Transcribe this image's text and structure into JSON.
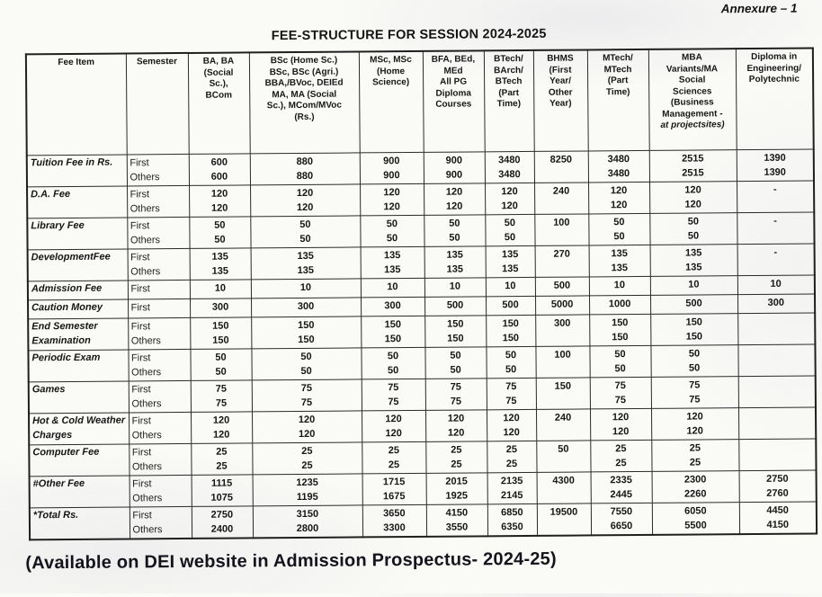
{
  "page": {
    "annexure": "Annexure – 1",
    "title": "FEE-STRUCTURE FOR SESSION 2024-2025",
    "footnote": "(Available on DEI website in Admission Prospectus- 2024-25)"
  },
  "table": {
    "columns": [
      {
        "label": "Fee Item"
      },
      {
        "label": "Semester"
      },
      {
        "label": "BA, BA\n(Social\nSc.),\nBCom"
      },
      {
        "label": "BSc (Home Sc.)\nBSc, BSc (Agri.)\nBBA,/BVoc, DEIEd\nMA, MA (Social\nSc.), MCom/MVoc\n(Rs.)"
      },
      {
        "label": "MSc, MSc\n(Home\nScience)"
      },
      {
        "label": "BFA, BEd,\nMEd\nAll PG\nDiploma\nCourses"
      },
      {
        "label": "BTech/\nBArch/\nBTech\n(Part\nTime)"
      },
      {
        "label": "BHMS\n(First\nYear/\nOther\nYear)"
      },
      {
        "label": "MTech/\nMTech\n(Part\nTime)"
      },
      {
        "label": "MBA\nVariants/MA\nSocial\nSciences\n(Business\nManagement -\n",
        "italic_tail": "at projectsites)"
      },
      {
        "label": "Diploma in\nEngineering/\nPolytechnic"
      }
    ],
    "rows": [
      {
        "item": "Tuition Fee in Rs.",
        "sem": [
          "First",
          "Others"
        ],
        "cells": [
          [
            "600",
            "600"
          ],
          [
            "880",
            "880"
          ],
          [
            "900",
            "900"
          ],
          [
            "900",
            "900"
          ],
          [
            "3480",
            "3480"
          ],
          [
            "8250",
            ""
          ],
          [
            "3480",
            "3480"
          ],
          [
            "2515",
            "2515"
          ],
          [
            "1390",
            "1390"
          ]
        ]
      },
      {
        "item": "D.A. Fee",
        "sem": [
          "First",
          "Others"
        ],
        "cells": [
          [
            "120",
            "120"
          ],
          [
            "120",
            "120"
          ],
          [
            "120",
            "120"
          ],
          [
            "120",
            "120"
          ],
          [
            "120",
            "120"
          ],
          [
            "240",
            ""
          ],
          [
            "120",
            "120"
          ],
          [
            "120",
            "120"
          ],
          [
            "-",
            ""
          ]
        ]
      },
      {
        "item": "Library Fee",
        "sem": [
          "First",
          "Others"
        ],
        "cells": [
          [
            "50",
            "50"
          ],
          [
            "50",
            "50"
          ],
          [
            "50",
            "50"
          ],
          [
            "50",
            "50"
          ],
          [
            "50",
            "50"
          ],
          [
            "100",
            ""
          ],
          [
            "50",
            "50"
          ],
          [
            "50",
            "50"
          ],
          [
            "-",
            ""
          ]
        ]
      },
      {
        "item": "DevelopmentFee",
        "sem": [
          "First",
          "Others"
        ],
        "cells": [
          [
            "135",
            "135"
          ],
          [
            "135",
            "135"
          ],
          [
            "135",
            "135"
          ],
          [
            "135",
            "135"
          ],
          [
            "135",
            "135"
          ],
          [
            "270",
            ""
          ],
          [
            "135",
            "135"
          ],
          [
            "135",
            "135"
          ],
          [
            "-",
            ""
          ]
        ]
      },
      {
        "item": "Admission Fee",
        "sem": [
          "First"
        ],
        "cells": [
          [
            "10"
          ],
          [
            "10"
          ],
          [
            "10"
          ],
          [
            "10"
          ],
          [
            "10"
          ],
          [
            "500"
          ],
          [
            "10"
          ],
          [
            "10"
          ],
          [
            "10"
          ]
        ]
      },
      {
        "item": "Caution Money",
        "sem": [
          "First"
        ],
        "cells": [
          [
            "300"
          ],
          [
            "300"
          ],
          [
            "300"
          ],
          [
            "500"
          ],
          [
            "500"
          ],
          [
            "5000"
          ],
          [
            "1000"
          ],
          [
            "500"
          ],
          [
            "300"
          ]
        ]
      },
      {
        "item": "End Semester\nExamination",
        "sem": [
          "First",
          "Others"
        ],
        "cells": [
          [
            "150",
            "150"
          ],
          [
            "150",
            "150"
          ],
          [
            "150",
            "150"
          ],
          [
            "150",
            "150"
          ],
          [
            "150",
            "150"
          ],
          [
            "300",
            ""
          ],
          [
            "150",
            "150"
          ],
          [
            "150",
            "150"
          ],
          [
            "",
            ""
          ]
        ]
      },
      {
        "item": "Periodic Exam",
        "sem": [
          "First",
          "Others"
        ],
        "cells": [
          [
            "50",
            "50"
          ],
          [
            "50",
            "50"
          ],
          [
            "50",
            "50"
          ],
          [
            "50",
            "50"
          ],
          [
            "50",
            "50"
          ],
          [
            "100",
            ""
          ],
          [
            "50",
            "50"
          ],
          [
            "50",
            "50"
          ],
          [
            "",
            ""
          ]
        ]
      },
      {
        "item": "Games",
        "sem": [
          "First",
          "Others"
        ],
        "cells": [
          [
            "75",
            "75"
          ],
          [
            "75",
            "75"
          ],
          [
            "75",
            "75"
          ],
          [
            "75",
            "75"
          ],
          [
            "75",
            "75"
          ],
          [
            "150",
            ""
          ],
          [
            "75",
            "75"
          ],
          [
            "75",
            "75"
          ],
          [
            "",
            ""
          ]
        ]
      },
      {
        "item": "Hot & Cold Weather\nCharges",
        "sem": [
          "First",
          "Others"
        ],
        "cells": [
          [
            "120",
            "120"
          ],
          [
            "120",
            "120"
          ],
          [
            "120",
            "120"
          ],
          [
            "120",
            "120"
          ],
          [
            "120",
            "120"
          ],
          [
            "240",
            ""
          ],
          [
            "120",
            "120"
          ],
          [
            "120",
            "120"
          ],
          [
            "",
            ""
          ]
        ]
      },
      {
        "item": "Computer Fee",
        "sem": [
          "First",
          "Others"
        ],
        "cells": [
          [
            "25",
            "25"
          ],
          [
            "25",
            "25"
          ],
          [
            "25",
            "25"
          ],
          [
            "25",
            "25"
          ],
          [
            "25",
            "25"
          ],
          [
            "50",
            ""
          ],
          [
            "25",
            "25"
          ],
          [
            "25",
            "25"
          ],
          [
            "",
            ""
          ]
        ]
      },
      {
        "item": "#Other Fee",
        "sem": [
          "First",
          "Others"
        ],
        "cells": [
          [
            "1115",
            "1075"
          ],
          [
            "1235",
            "1195"
          ],
          [
            "1715",
            "1675"
          ],
          [
            "2015",
            "1925"
          ],
          [
            "2135",
            "2145"
          ],
          [
            "4300",
            ""
          ],
          [
            "2335",
            "2445"
          ],
          [
            "2300",
            "2260"
          ],
          [
            "2750",
            "2760"
          ]
        ]
      },
      {
        "item": "*Total Rs.",
        "sem": [
          "First",
          "Others"
        ],
        "cells": [
          [
            "2750",
            "2400"
          ],
          [
            "3150",
            "2800"
          ],
          [
            "3650",
            "3300"
          ],
          [
            "4150",
            "3550"
          ],
          [
            "6850",
            "6350"
          ],
          [
            "19500",
            ""
          ],
          [
            "7550",
            "6650"
          ],
          [
            "6050",
            "5500"
          ],
          [
            "4450",
            "4150"
          ]
        ]
      }
    ]
  }
}
